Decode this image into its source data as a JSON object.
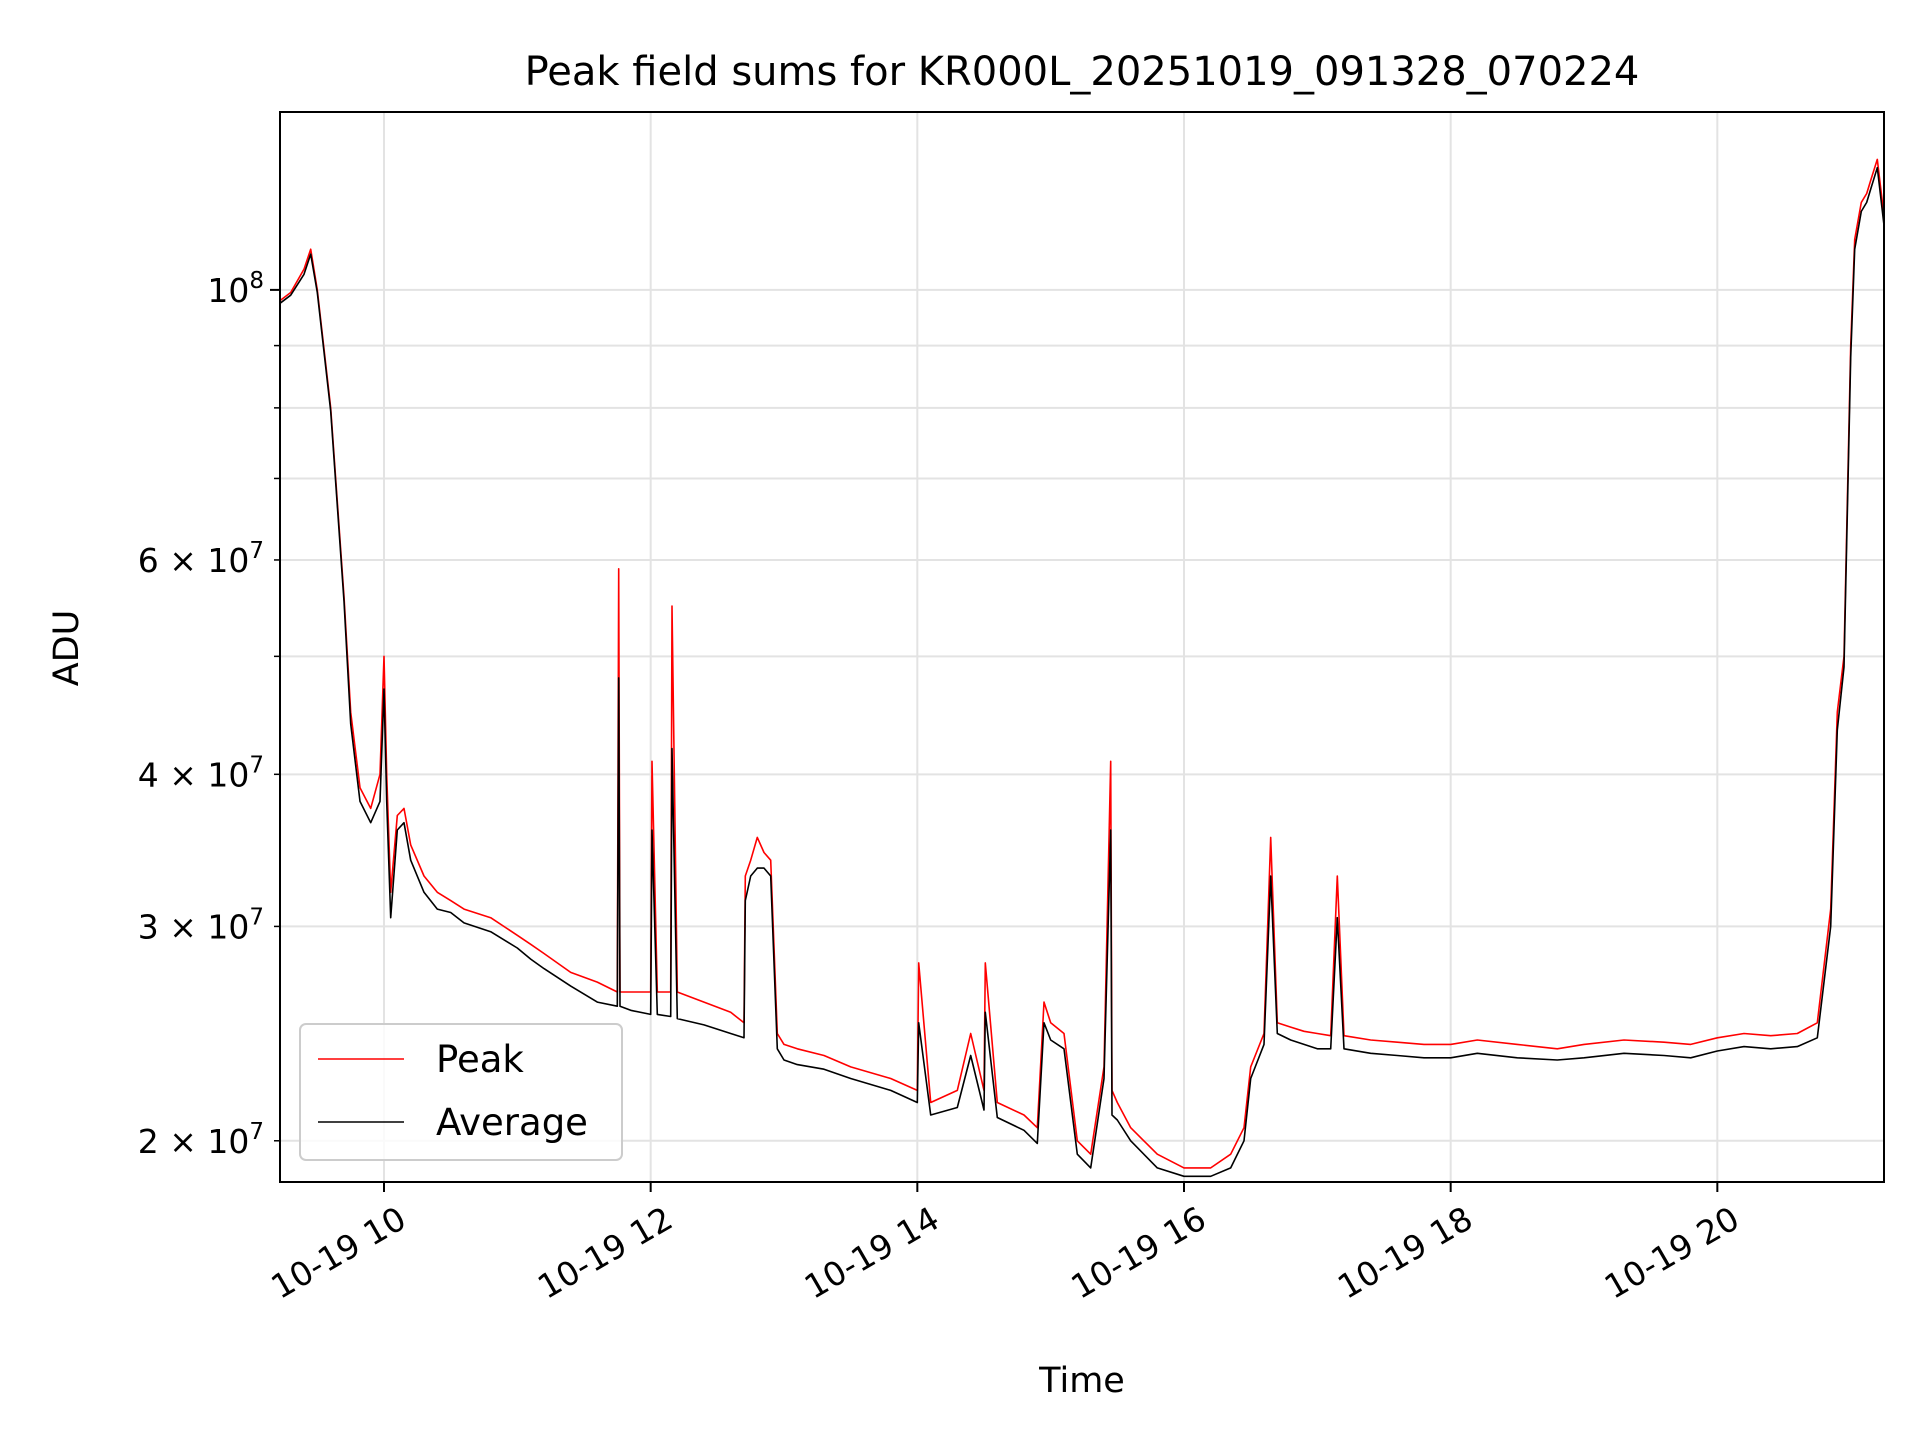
{
  "chart_data": {
    "type": "line",
    "title": "Peak field sums for KR000L_20251019_091328_070224",
    "xlabel": "Time",
    "ylabel": "ADU",
    "yscale": "log",
    "ylim": [
      18500000,
      140000000
    ],
    "xlim_hours": [
      9.22,
      21.25
    ],
    "grid": true,
    "legend_position": "lower-left",
    "x_ticks": [
      {
        "value": 10,
        "label": "10-19 10"
      },
      {
        "value": 12,
        "label": "10-19 12"
      },
      {
        "value": 14,
        "label": "10-19 14"
      },
      {
        "value": 16,
        "label": "10-19 16"
      },
      {
        "value": 18,
        "label": "10-19 18"
      },
      {
        "value": 20,
        "label": "10-19 20"
      }
    ],
    "y_major_ticks": [
      {
        "value": 100000000,
        "base": "10",
        "exp": "8"
      }
    ],
    "y_minor_ticks": [
      {
        "value": 20000000,
        "coef": "2",
        "base": "10",
        "exp": "7"
      },
      {
        "value": 30000000,
        "coef": "3",
        "base": "10",
        "exp": "7"
      },
      {
        "value": 40000000,
        "coef": "4",
        "base": "10",
        "exp": "7"
      },
      {
        "value": 60000000,
        "coef": "6",
        "base": "10",
        "exp": "7"
      }
    ],
    "y_minor_unlabeled": [
      50000000,
      70000000,
      80000000,
      90000000
    ],
    "series": [
      {
        "name": "Peak",
        "color": "#ff0000",
        "x": [
          9.22,
          9.3,
          9.4,
          9.45,
          9.5,
          9.6,
          9.7,
          9.75,
          9.82,
          9.9,
          9.97,
          10.0,
          10.02,
          10.05,
          10.1,
          10.15,
          10.2,
          10.3,
          10.4,
          10.5,
          10.6,
          10.8,
          11.0,
          11.1,
          11.2,
          11.4,
          11.6,
          11.75,
          11.76,
          11.77,
          11.85,
          12.0,
          12.01,
          12.05,
          12.15,
          12.16,
          12.2,
          12.4,
          12.6,
          12.7,
          12.71,
          12.75,
          12.8,
          12.85,
          12.9,
          12.95,
          13.0,
          13.1,
          13.3,
          13.5,
          13.8,
          14.0,
          14.01,
          14.1,
          14.3,
          14.4,
          14.5,
          14.51,
          14.6,
          14.8,
          14.9,
          14.95,
          15.0,
          15.1,
          15.2,
          15.3,
          15.4,
          15.45,
          15.46,
          15.5,
          15.6,
          15.8,
          16.0,
          16.2,
          16.35,
          16.45,
          16.5,
          16.6,
          16.65,
          16.7,
          16.8,
          16.9,
          17.0,
          17.1,
          17.15,
          17.2,
          17.4,
          17.6,
          17.8,
          18.0,
          18.2,
          18.5,
          18.8,
          19.0,
          19.3,
          19.6,
          19.8,
          20.0,
          20.2,
          20.4,
          20.6,
          20.75,
          20.85,
          20.9,
          20.95,
          21.0,
          21.03,
          21.08,
          21.12,
          21.15,
          21.2,
          21.25
        ],
        "y": [
          98000000,
          99500000,
          104000000,
          108000000,
          100000000,
          80000000,
          56000000,
          45000000,
          39000000,
          37500000,
          40000000,
          50000000,
          40000000,
          32000000,
          37000000,
          37500000,
          35000000,
          33000000,
          32000000,
          31500000,
          31000000,
          30500000,
          29500000,
          29000000,
          28500000,
          27500000,
          27000000,
          26500000,
          59000000,
          26500000,
          26500000,
          26500000,
          41000000,
          26500000,
          26500000,
          55000000,
          26500000,
          26000000,
          25500000,
          25000000,
          33000000,
          34000000,
          35500000,
          34500000,
          34000000,
          24500000,
          24000000,
          23800000,
          23500000,
          23000000,
          22500000,
          22000000,
          28000000,
          21500000,
          22000000,
          24500000,
          22000000,
          28000000,
          21500000,
          21000000,
          20500000,
          26000000,
          25000000,
          24500000,
          20000000,
          19500000,
          23000000,
          41000000,
          22000000,
          21500000,
          20500000,
          19500000,
          19000000,
          19000000,
          19500000,
          20500000,
          23000000,
          24500000,
          35500000,
          25000000,
          24800000,
          24600000,
          24500000,
          24400000,
          33000000,
          24400000,
          24200000,
          24100000,
          24000000,
          24000000,
          24200000,
          24000000,
          23800000,
          24000000,
          24200000,
          24100000,
          24000000,
          24300000,
          24500000,
          24400000,
          24500000,
          25000000,
          31000000,
          45000000,
          50000000,
          90000000,
          110000000,
          118000000,
          120000000,
          123000000,
          128000000,
          115000000
        ]
      },
      {
        "name": "Average",
        "color": "#000000",
        "x": [
          9.22,
          9.3,
          9.4,
          9.45,
          9.5,
          9.6,
          9.7,
          9.75,
          9.82,
          9.9,
          9.97,
          10.0,
          10.02,
          10.05,
          10.1,
          10.15,
          10.2,
          10.3,
          10.4,
          10.5,
          10.6,
          10.8,
          11.0,
          11.1,
          11.2,
          11.4,
          11.6,
          11.75,
          11.76,
          11.77,
          11.85,
          12.0,
          12.01,
          12.05,
          12.15,
          12.16,
          12.2,
          12.4,
          12.6,
          12.7,
          12.71,
          12.75,
          12.8,
          12.85,
          12.9,
          12.95,
          13.0,
          13.1,
          13.3,
          13.5,
          13.8,
          14.0,
          14.01,
          14.1,
          14.3,
          14.4,
          14.5,
          14.51,
          14.6,
          14.8,
          14.9,
          14.95,
          15.0,
          15.1,
          15.2,
          15.3,
          15.4,
          15.45,
          15.46,
          15.5,
          15.6,
          15.8,
          16.0,
          16.2,
          16.35,
          16.45,
          16.5,
          16.6,
          16.65,
          16.7,
          16.8,
          16.9,
          17.0,
          17.1,
          17.15,
          17.2,
          17.4,
          17.6,
          17.8,
          18.0,
          18.2,
          18.5,
          18.8,
          19.0,
          19.3,
          19.6,
          19.8,
          20.0,
          20.2,
          20.4,
          20.6,
          20.75,
          20.85,
          20.9,
          20.95,
          21.0,
          21.03,
          21.08,
          21.12,
          21.15,
          21.2,
          21.25
        ],
        "y": [
          97500000,
          99000000,
          103000000,
          107000000,
          99500000,
          79500000,
          55500000,
          44000000,
          38000000,
          36500000,
          38000000,
          47000000,
          38000000,
          30500000,
          36000000,
          36500000,
          34000000,
          32000000,
          31000000,
          30800000,
          30200000,
          29700000,
          28800000,
          28200000,
          27700000,
          26800000,
          26000000,
          25800000,
          48000000,
          25800000,
          25600000,
          25400000,
          36000000,
          25400000,
          25300000,
          42000000,
          25200000,
          24900000,
          24500000,
          24300000,
          31500000,
          33000000,
          33500000,
          33500000,
          33000000,
          23800000,
          23300000,
          23100000,
          22900000,
          22500000,
          22000000,
          21500000,
          25000000,
          21000000,
          21300000,
          23500000,
          21200000,
          25500000,
          20900000,
          20400000,
          19900000,
          25000000,
          24200000,
          23800000,
          19500000,
          19000000,
          22500000,
          36000000,
          21000000,
          20800000,
          20000000,
          19000000,
          18700000,
          18700000,
          19000000,
          20000000,
          22500000,
          24000000,
          33000000,
          24500000,
          24200000,
          24000000,
          23800000,
          23800000,
          30500000,
          23800000,
          23600000,
          23500000,
          23400000,
          23400000,
          23600000,
          23400000,
          23300000,
          23400000,
          23600000,
          23500000,
          23400000,
          23700000,
          23900000,
          23800000,
          23900000,
          24300000,
          30000000,
          43500000,
          49000000,
          88000000,
          108000000,
          116000000,
          118000000,
          121000000,
          126000000,
          113000000
        ]
      }
    ]
  }
}
